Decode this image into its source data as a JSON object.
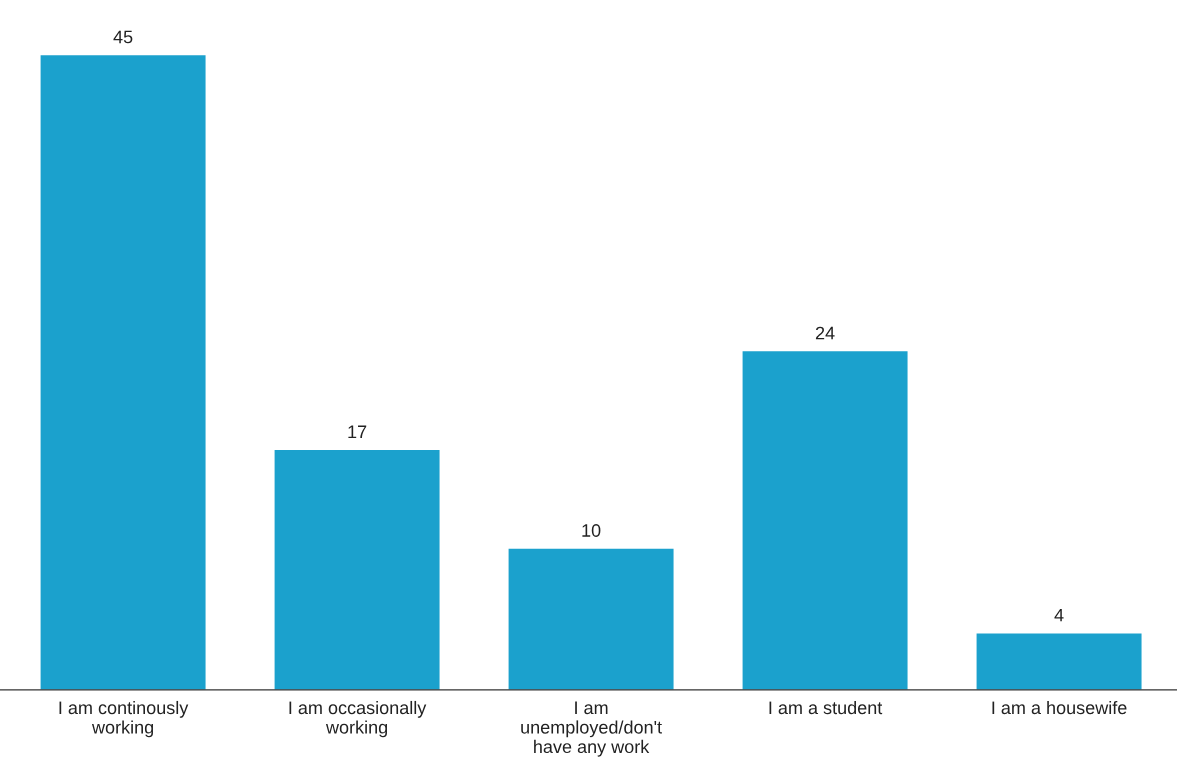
{
  "chart_data": {
    "type": "bar",
    "categories": [
      "I am continously\nworking",
      "I am occasionally\nworking",
      "I am\nunemployed/don't\nhave any work",
      "I am a student",
      "I am a housewife"
    ],
    "values": [
      45,
      17,
      10,
      24,
      4
    ],
    "color": "#1ba1cd",
    "data_labels": true,
    "grid": false,
    "legend": false
  }
}
